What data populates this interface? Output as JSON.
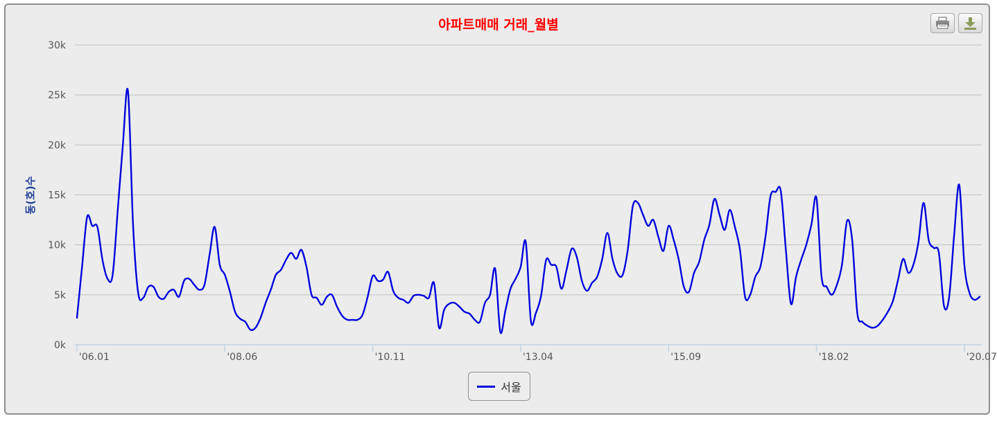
{
  "colors": {
    "series": "#0000dd",
    "title": "#ff0000",
    "ylabel": "#1f3f99",
    "grid": "#c0c0c0",
    "axis": "#c0d0e0"
  },
  "toolbar": {
    "print_icon": "printer-icon",
    "download_icon": "download-icon"
  },
  "chart_data": {
    "type": "line",
    "title": "아파트매매 거래_월별",
    "xlabel": "",
    "ylabel": "동(호)수",
    "ylim": [
      0,
      30000
    ],
    "yticks": [
      0,
      5000,
      10000,
      15000,
      20000,
      25000,
      30000
    ],
    "ytick_labels": [
      "0k",
      "5k",
      "10k",
      "15k",
      "20k",
      "25k",
      "30k"
    ],
    "x_start": "2006-01",
    "x_end": "2020-10",
    "xtick_labels": [
      {
        "label": "'06.01",
        "index": 0
      },
      {
        "label": "'08.06",
        "index": 29
      },
      {
        "label": "'10.11",
        "index": 58
      },
      {
        "label": "'13.04",
        "index": 87
      },
      {
        "label": "'15.09",
        "index": 116
      },
      {
        "label": "'18.02",
        "index": 145
      },
      {
        "label": "'20.07",
        "index": 174
      }
    ],
    "grid": true,
    "legend": "bottom-center",
    "series": [
      {
        "name": "서울",
        "values": [
          2700,
          7800,
          12800,
          11900,
          11800,
          8500,
          6600,
          7000,
          13500,
          20000,
          25400,
          12000,
          5200,
          4700,
          5800,
          5800,
          4800,
          4600,
          5300,
          5500,
          4800,
          6400,
          6600,
          6000,
          5500,
          6000,
          9000,
          11800,
          8000,
          7000,
          5300,
          3300,
          2600,
          2300,
          1500,
          1700,
          2700,
          4200,
          5500,
          7000,
          7500,
          8500,
          9200,
          8600,
          9500,
          7800,
          5000,
          4700,
          4000,
          4800,
          5000,
          3800,
          2900,
          2500,
          2500,
          2500,
          3000,
          4800,
          6900,
          6400,
          6500,
          7300,
          5400,
          4700,
          4500,
          4200,
          4900,
          5000,
          4900,
          4700,
          6200,
          1700,
          3500,
          4100,
          4200,
          3800,
          3300,
          3100,
          2500,
          2300,
          4200,
          5000,
          7600,
          1300,
          3400,
          5600,
          6600,
          7800,
          10300,
          2400,
          3200,
          4900,
          8500,
          8000,
          7800,
          5600,
          7500,
          9600,
          8800,
          6400,
          5400,
          6200,
          6800,
          8600,
          11200,
          8600,
          7100,
          7000,
          9500,
          13900,
          14200,
          13000,
          11900,
          12500,
          10800,
          9400,
          11900,
          10500,
          8500,
          5800,
          5300,
          7200,
          8300,
          10500,
          12000,
          14600,
          13000,
          11500,
          13500,
          11800,
          9500,
          4800,
          5000,
          6800,
          7800,
          10800,
          14900,
          15300,
          15400,
          9500,
          4100,
          6800,
          8500,
          10000,
          12000,
          14700,
          6800,
          5800,
          5000,
          6000,
          8000,
          12400,
          10500,
          3200,
          2300,
          1900,
          1700,
          1900,
          2500,
          3300,
          4400,
          6500,
          8600,
          7200,
          8000,
          10300,
          14200,
          10500,
          9700,
          9200,
          3900,
          4700,
          11000,
          16000,
          8000,
          5200,
          4500,
          4800
        ]
      }
    ]
  }
}
